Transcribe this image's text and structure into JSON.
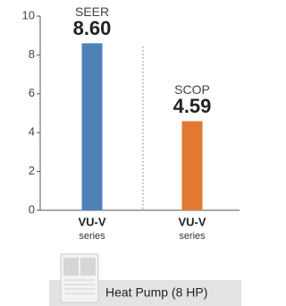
{
  "chart_data": {
    "type": "bar",
    "categories": [
      [
        "VU-V",
        "series"
      ],
      [
        "VU-V",
        "series"
      ]
    ],
    "series": [
      {
        "name": "SEER",
        "color": "#4f81b9",
        "values": [
          8.6,
          null
        ],
        "value_labels": [
          "8.60",
          null
        ]
      },
      {
        "name": "SCOP",
        "color": "#e07a32",
        "values": [
          null,
          4.59
        ],
        "value_labels": [
          null,
          "4.59"
        ]
      }
    ],
    "ylim": [
      0,
      10
    ],
    "yticks": [
      0,
      2,
      4,
      6,
      8,
      10
    ]
  },
  "footer": {
    "label": "Heat Pump (8 HP)"
  }
}
